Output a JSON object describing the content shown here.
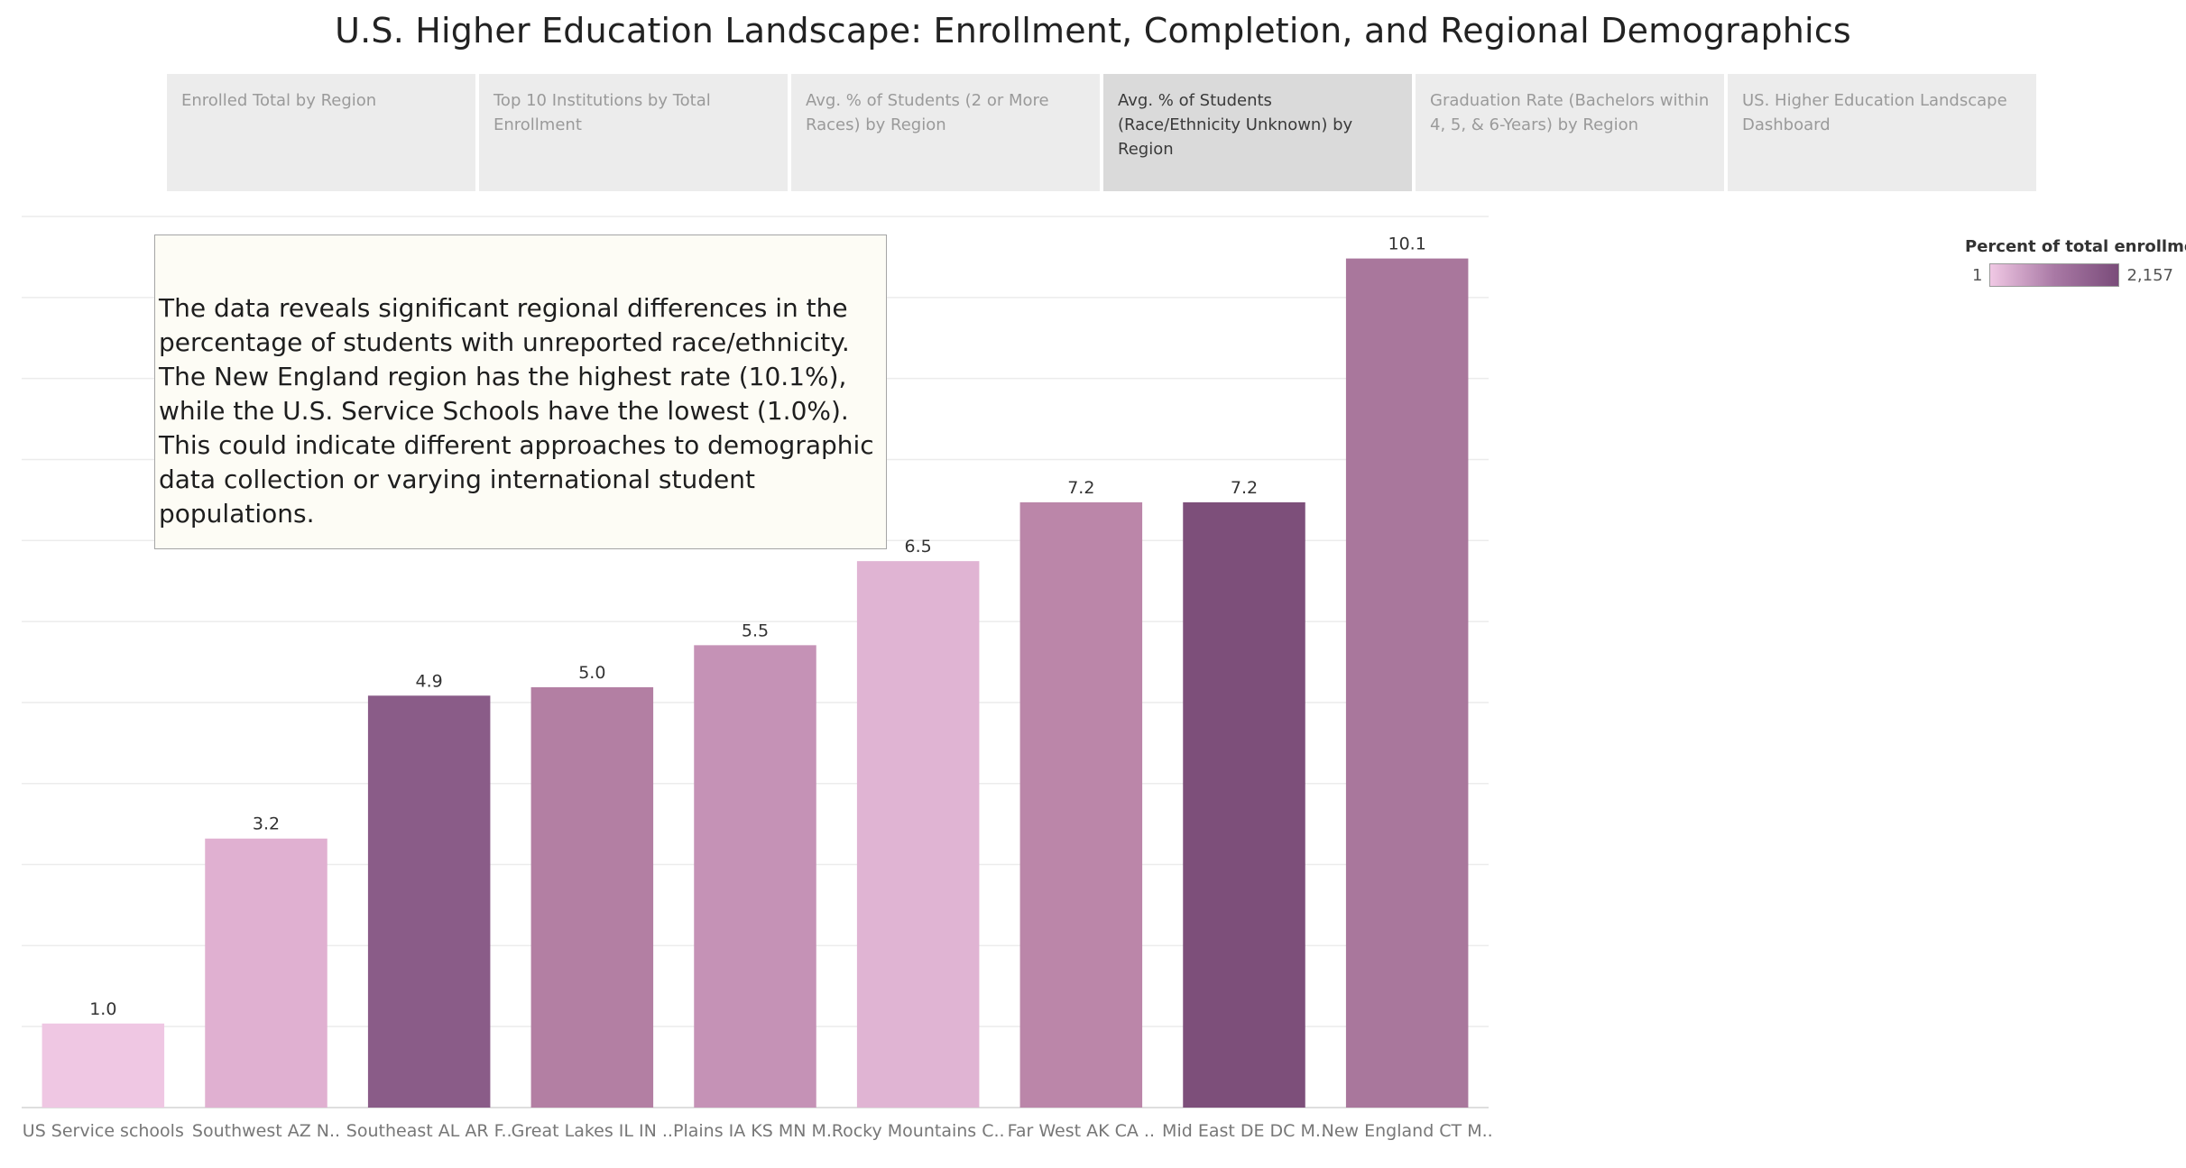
{
  "dashboard": {
    "title": "U.S. Higher Education Landscape: Enrollment, Completion, and Regional Demographics"
  },
  "tabs": [
    {
      "label": "Enrolled Total by Region",
      "active": false
    },
    {
      "label": "Top 10 Institutions by Total Enrollment",
      "active": false
    },
    {
      "label": "Avg. % of Students (2 or More Races) by Region",
      "active": false
    },
    {
      "label": "Avg. % of Students (Race/Ethnicity Unknown) by Region",
      "active": true
    },
    {
      "label": "Graduation Rate (Bachelors within 4, 5, & 6-Years) by Region",
      "active": false
    },
    {
      "label": "US.  Higher Education Landscape Dashboard",
      "active": false
    }
  ],
  "annotation": {
    "text": "The data reveals significant regional differences in the percentage of students with unreported race/ethnicity. The New England region has the highest rate (10.1%), while the U.S. Service Schools have the lowest (1.0%). This could indicate different approaches to demographic data collection or varying international student populations."
  },
  "legend": {
    "title": "Percent of total enrollme..",
    "min_label": "1",
    "max_label": "2,157"
  },
  "chart_data": {
    "type": "bar",
    "categories": [
      "US Service schools",
      "Southwest AZ N..",
      "Southeast AL AR F..",
      "Great Lakes IL IN ..",
      "Plains IA KS MN M..",
      "Rocky Mountains C..",
      "Far West AK CA ..",
      "Mid East DE DC M..",
      "New England CT M.."
    ],
    "values": [
      1.0,
      3.2,
      4.9,
      5.0,
      5.5,
      6.5,
      7.2,
      7.2,
      10.1
    ],
    "value_labels": [
      "1.0",
      "3.2",
      "4.9",
      "5.0",
      "5.5",
      "6.5",
      "7.2",
      "7.2",
      "10.1"
    ],
    "colors": [
      "#efc7e3",
      "#e0b0d1",
      "#8a5c88",
      "#b37fa3",
      "#c592b6",
      "#e0b4d3",
      "#bb86a9",
      "#7d4f7a",
      "#a9779c"
    ],
    "ylim": [
      0,
      10.6
    ],
    "grid": true,
    "legend_placement": "top-right",
    "title": "",
    "xlabel": "",
    "ylabel": ""
  }
}
